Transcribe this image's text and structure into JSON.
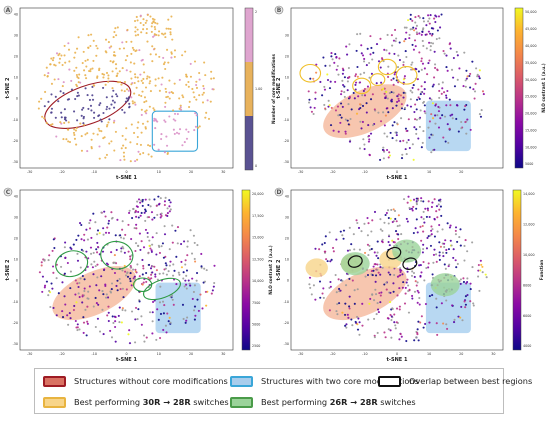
{
  "figure": {
    "panels": [
      {
        "letter": "A",
        "xlabel": "t-SNE 1",
        "ylabel": "t-SNE 2",
        "xticks": [
          -30,
          -20,
          -10,
          0,
          10,
          20,
          30
        ],
        "yticks": [
          40,
          30,
          20,
          10,
          0,
          -10,
          -20,
          -30
        ],
        "colorbar": {
          "label": "Number of core  modifications",
          "ticks": [
            "2",
            "1.00",
            "0"
          ],
          "colors": [
            "#dfa5cf",
            "#e8b25c",
            "#5a5292"
          ]
        }
      },
      {
        "letter": "B",
        "xlabel": "t-SNE 1",
        "ylabel": "t-SNE 2",
        "xticks": [
          -30,
          -20,
          -10,
          0,
          10,
          20
        ],
        "yticks": [
          30,
          20,
          10,
          0,
          -10,
          -20,
          -30
        ],
        "colorbar": {
          "label": "NLO contrast 1 (a.u.)",
          "ticks": [
            "50,000",
            "45,000",
            "40,000",
            "35,000",
            "30,000",
            "25,000",
            "20,000",
            "15,000",
            "10,000",
            "5000"
          ]
        }
      },
      {
        "letter": "C",
        "xlabel": "t-SNE 1",
        "ylabel": "t-SNE 2",
        "xticks": [
          -30,
          -20,
          -10,
          0,
          10,
          20,
          30
        ],
        "yticks": [
          40,
          30,
          20,
          10,
          0,
          -10,
          -20,
          -30
        ],
        "colorbar": {
          "label": "NLO contrast 2 (a.u.)",
          "ticks": [
            "20,000",
            "17,500",
            "15,000",
            "12,500",
            "10,000",
            "7500",
            "5000",
            "2500"
          ]
        }
      },
      {
        "letter": "D",
        "xlabel": "t-SNE 1",
        "ylabel": "t-SNE 2",
        "xticks": [
          -30,
          -20,
          -10,
          0,
          10,
          20,
          30
        ],
        "yticks": [
          40,
          30,
          20,
          10,
          0,
          -10,
          -20,
          -30
        ],
        "colorbar": {
          "label": "Function",
          "ticks": [
            "14,000",
            "12,000",
            "10,000",
            "8000",
            "6000",
            "4000"
          ]
        }
      }
    ]
  },
  "legend": {
    "items": [
      {
        "text_before": "Structures without core modifications",
        "bold": "",
        "text_after": "",
        "fill": "#d97263",
        "border": "#9e1b24"
      },
      {
        "text_before": "Structures with two core modifications",
        "bold": "",
        "text_after": "",
        "fill": "#a9cdec",
        "border": "#3aa6d8"
      },
      {
        "text_before": "Overlap between best regions",
        "bold": "",
        "text_after": "",
        "fill": "#ffffff",
        "border": "#111111"
      },
      {
        "text_before": "Best performing ",
        "bold": "30R → 28R",
        "text_after": " switches",
        "fill": "#f8d58a",
        "border": "#e8b440"
      },
      {
        "text_before": "Best performing ",
        "bold": "26R → 28R",
        "text_after": " switches",
        "fill": "#9bd39a",
        "border": "#4a9b49"
      }
    ]
  }
}
